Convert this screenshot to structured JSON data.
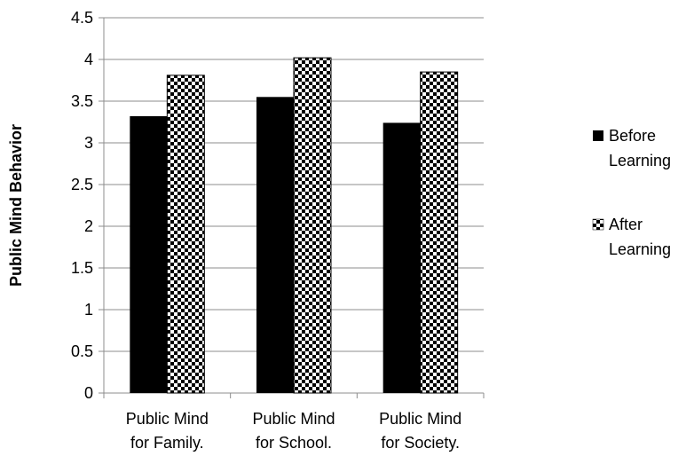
{
  "chart_data": {
    "type": "bar",
    "title": "",
    "xlabel": "",
    "ylabel": "Public Mind Behavior",
    "ylim": [
      0,
      4.5
    ],
    "yticks": [
      "0",
      "0.5",
      "1",
      "1.5",
      "2",
      "2.5",
      "3",
      "3.5",
      "4",
      "4.5"
    ],
    "categories": [
      [
        "Public Mind",
        "for Family."
      ],
      [
        "Public Mind",
        "for School."
      ],
      [
        "Public Mind",
        "for Society."
      ]
    ],
    "series": [
      {
        "name": [
          "Before",
          "Learning"
        ],
        "values": [
          3.32,
          3.55,
          3.24
        ],
        "color": "#000000",
        "pattern": "solid"
      },
      {
        "name": [
          "After",
          "Learning"
        ],
        "values": [
          3.81,
          4.02,
          3.85
        ],
        "color": "#000000",
        "pattern": "checkerboard"
      }
    ],
    "grid": true,
    "legend_position": "right"
  }
}
